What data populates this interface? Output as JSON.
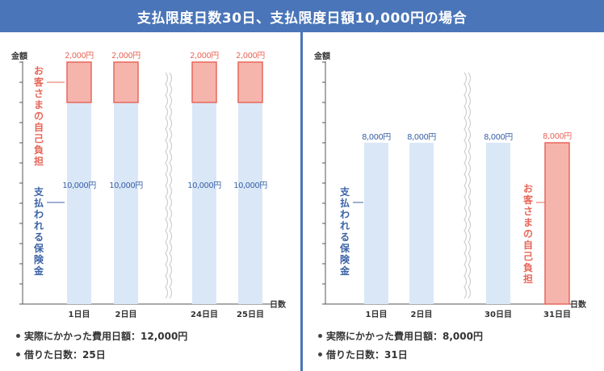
{
  "header": {
    "title": "支払限度日数30日、支払限度日額10,000円の場合"
  },
  "chart_data": [
    {
      "type": "bar",
      "stacked": true,
      "ylabel": "金額",
      "xlabel": "日数",
      "categories": [
        "1日目",
        "2日目",
        "24日目",
        "25日目"
      ],
      "axis_break_after_index": 1,
      "series": [
        {
          "name": "支払われる保険金",
          "values": [
            10000,
            10000,
            10000,
            10000
          ],
          "labels": [
            "10,000円",
            "10,000円",
            "10,000円",
            "10,000円"
          ],
          "color": "#dae7f7"
        },
        {
          "name": "お客さまの自己負担",
          "values": [
            2000,
            2000,
            2000,
            2000
          ],
          "labels": [
            "2,000円",
            "2,000円",
            "2,000円",
            "2,000円"
          ],
          "color": "#f5b5ad"
        }
      ],
      "ylim": [
        0,
        12500
      ],
      "notes": [
        "実際にかかった費用日額：12,000円",
        "借りた日数：25日"
      ]
    },
    {
      "type": "bar",
      "stacked": true,
      "ylabel": "金額",
      "xlabel": "日数",
      "categories": [
        "1日目",
        "2日目",
        "30日目",
        "31日目"
      ],
      "axis_break_after_index": 1,
      "series": [
        {
          "name": "支払われる保険金",
          "values": [
            8000,
            8000,
            8000,
            0
          ],
          "labels": [
            "8,000円",
            "8,000円",
            "8,000円",
            ""
          ],
          "color": "#dae7f7"
        },
        {
          "name": "お客さまの自己負担",
          "values": [
            0,
            0,
            0,
            8000
          ],
          "labels": [
            "",
            "",
            "",
            "8,000円"
          ],
          "color": "#f5b5ad"
        }
      ],
      "ylim": [
        0,
        12500
      ],
      "notes": [
        "実際にかかった費用日額：8,000円",
        "借りた日数：31日"
      ]
    }
  ],
  "colors": {
    "blue": "#3c63a6",
    "red": "#e8675a",
    "header": "#4a75b8"
  }
}
